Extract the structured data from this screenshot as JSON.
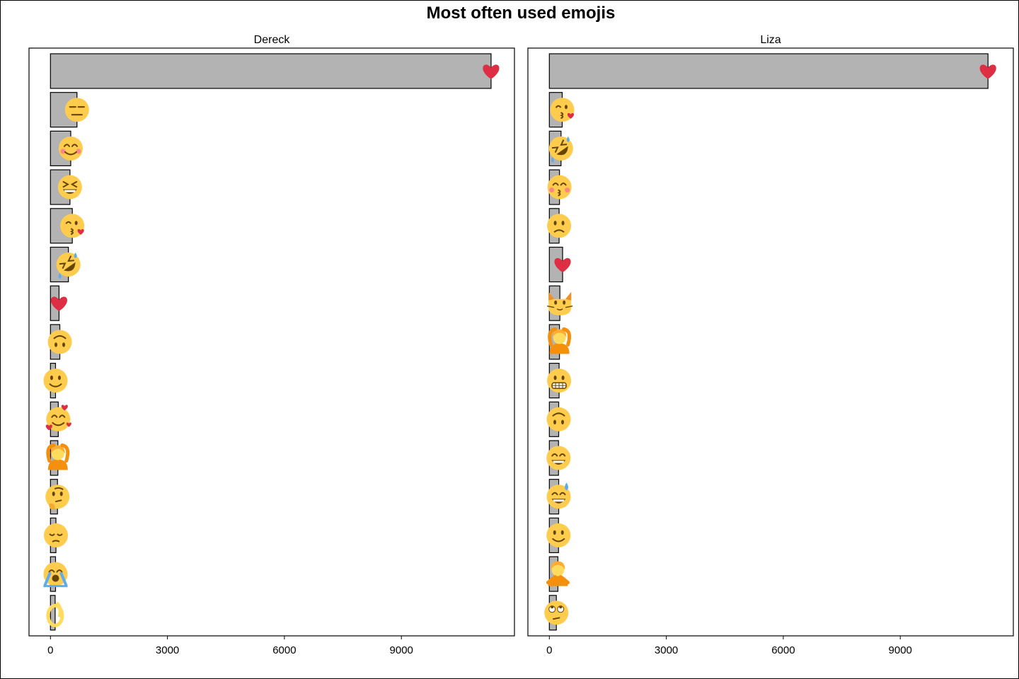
{
  "chart_data": {
    "type": "bar",
    "orientation": "horizontal",
    "title": "Most often used emojis",
    "xlabel": "",
    "ylabel": "",
    "xlim": [
      -550,
      11900
    ],
    "xticks": [
      0,
      3000,
      6000,
      9000
    ],
    "xtick_labels": [
      "0",
      "3000",
      "6000",
      "9000"
    ],
    "grid": false,
    "bar_fill": "#b3b3b3",
    "bar_stroke": "#000000",
    "panels": [
      {
        "name": "Dereck",
        "bars": [
          {
            "emoji": "red-heart",
            "value": 11300
          },
          {
            "emoji": "expressionless-face",
            "value": 680
          },
          {
            "emoji": "smiling-face-with-smiling-eyes",
            "value": 520
          },
          {
            "emoji": "grinning-squinting-face",
            "value": 500
          },
          {
            "emoji": "face-blowing-a-kiss",
            "value": 560
          },
          {
            "emoji": "rolling-on-the-floor-laughing",
            "value": 460
          },
          {
            "emoji": "red-heart",
            "value": 220
          },
          {
            "emoji": "upside-down-face",
            "value": 240
          },
          {
            "emoji": "slightly-smiling-face",
            "value": 130
          },
          {
            "emoji": "smiling-face-with-hearts",
            "value": 200
          },
          {
            "emoji": "person-gesturing-ok",
            "value": 190
          },
          {
            "emoji": "thinking-face",
            "value": 180
          },
          {
            "emoji": "pensive-face",
            "value": 140
          },
          {
            "emoji": "loudly-crying-face",
            "value": 130
          },
          {
            "emoji": "ok-hand",
            "value": 120
          }
        ]
      },
      {
        "name": "Liza",
        "bars": [
          {
            "emoji": "red-heart",
            "value": 11250
          },
          {
            "emoji": "face-blowing-a-kiss",
            "value": 330
          },
          {
            "emoji": "rolling-on-the-floor-laughing",
            "value": 300
          },
          {
            "emoji": "kissing-face-with-smiling-eyes",
            "value": 260
          },
          {
            "emoji": "confused-face",
            "value": 250
          },
          {
            "emoji": "red-heart",
            "value": 340
          },
          {
            "emoji": "cat-face",
            "value": 270
          },
          {
            "emoji": "person-gesturing-ok",
            "value": 260
          },
          {
            "emoji": "grimacing-face",
            "value": 250
          },
          {
            "emoji": "upside-down-face",
            "value": 240
          },
          {
            "emoji": "beaming-face-with-smiling-eyes",
            "value": 235
          },
          {
            "emoji": "grinning-face-with-sweat",
            "value": 240
          },
          {
            "emoji": "slightly-smiling-face",
            "value": 235
          },
          {
            "emoji": "person-gesturing-no",
            "value": 220
          },
          {
            "emoji": "face-with-rolling-eyes",
            "value": 180
          }
        ]
      }
    ]
  }
}
